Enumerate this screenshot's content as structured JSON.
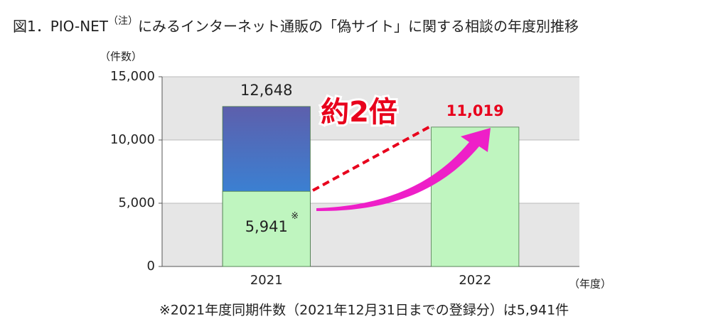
{
  "chart_data": {
    "type": "bar",
    "title": "図1．PIO-NET",
    "title_note": "（注）",
    "title_rest": "にみるインターネット通販の「偽サイト」に関する相談の年度別推移",
    "y_label": "（件数）",
    "x_label": "（年度）",
    "categories": [
      "2021",
      "2022"
    ],
    "values": [
      12648,
      11019
    ],
    "value_labels": [
      "12,648",
      "11,019"
    ],
    "colors": [
      "#5d5fac",
      "#bff5bf"
    ],
    "label_colors": [
      "#222222",
      "#e8001c"
    ],
    "inner_values": [
      5941,
      null
    ],
    "inner_value_labels": [
      "5,941",
      null
    ],
    "inner_color": "#bff5bf",
    "inner_mark": "※",
    "annotation": "約2倍",
    "footnote": "※2021年度同期件数（2021年12月31日までの登録分）は5,941件",
    "ylim": [
      0,
      15000
    ],
    "yticks": [
      0,
      {
        "value": 5000,
        "label": "5,000"
      },
      {
        "value": 10000,
        "label": "10,000"
      },
      {
        "value": 15000,
        "label": "15,000"
      }
    ],
    "grid": true
  }
}
